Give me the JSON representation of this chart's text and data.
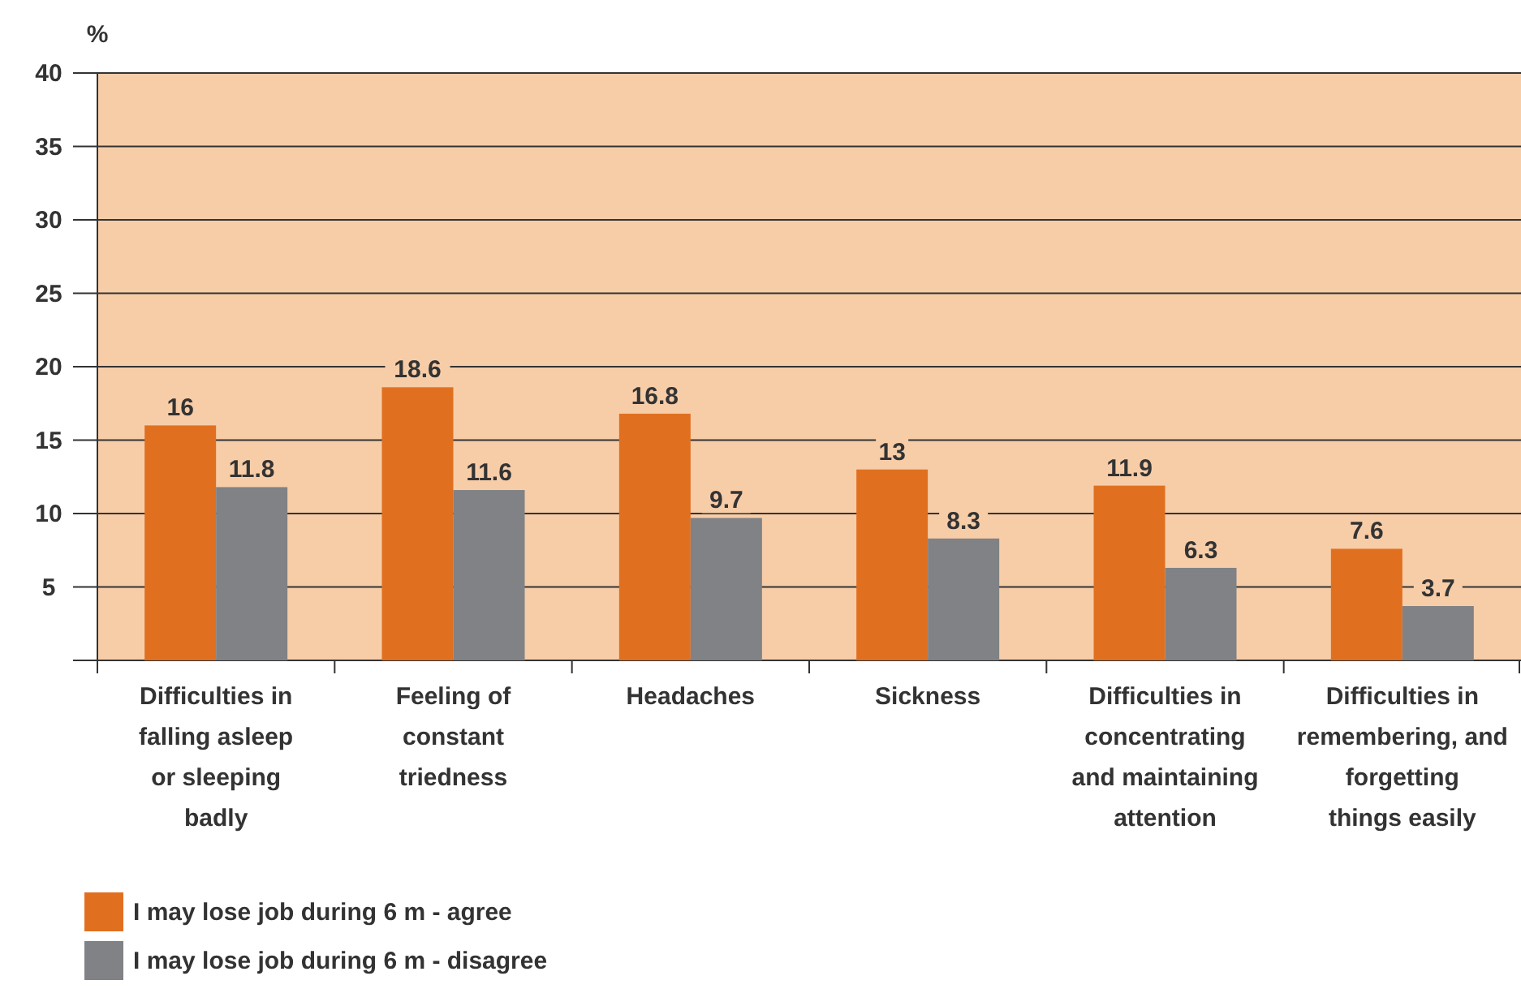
{
  "chart_data": {
    "type": "bar",
    "ylabel": "%",
    "categories": [
      "Difficulties in falling asleep or sleeping badly",
      "Feeling of constant triedness",
      "Headaches",
      "Sickness",
      "Difficulties in concentrating and maintaining attention",
      "Difficulties in remembering, and forgetting things easily"
    ],
    "series": [
      {
        "name": "I may lose job during 6 m - agree",
        "color": "#e07020",
        "values": [
          16,
          18.6,
          16.8,
          13,
          11.9,
          7.6
        ]
      },
      {
        "name": "I may lose job during 6 m - disagree",
        "color": "#808285",
        "values": [
          11.8,
          11.6,
          9.7,
          8.3,
          6.3,
          3.7
        ]
      }
    ],
    "ylim": [
      0,
      40
    ],
    "yticks": [
      {
        "value": 0,
        "label": null
      },
      5,
      10,
      15,
      20,
      25,
      30,
      35,
      40
    ],
    "grid": "y",
    "legend": "bottom",
    "data_labels": true
  }
}
